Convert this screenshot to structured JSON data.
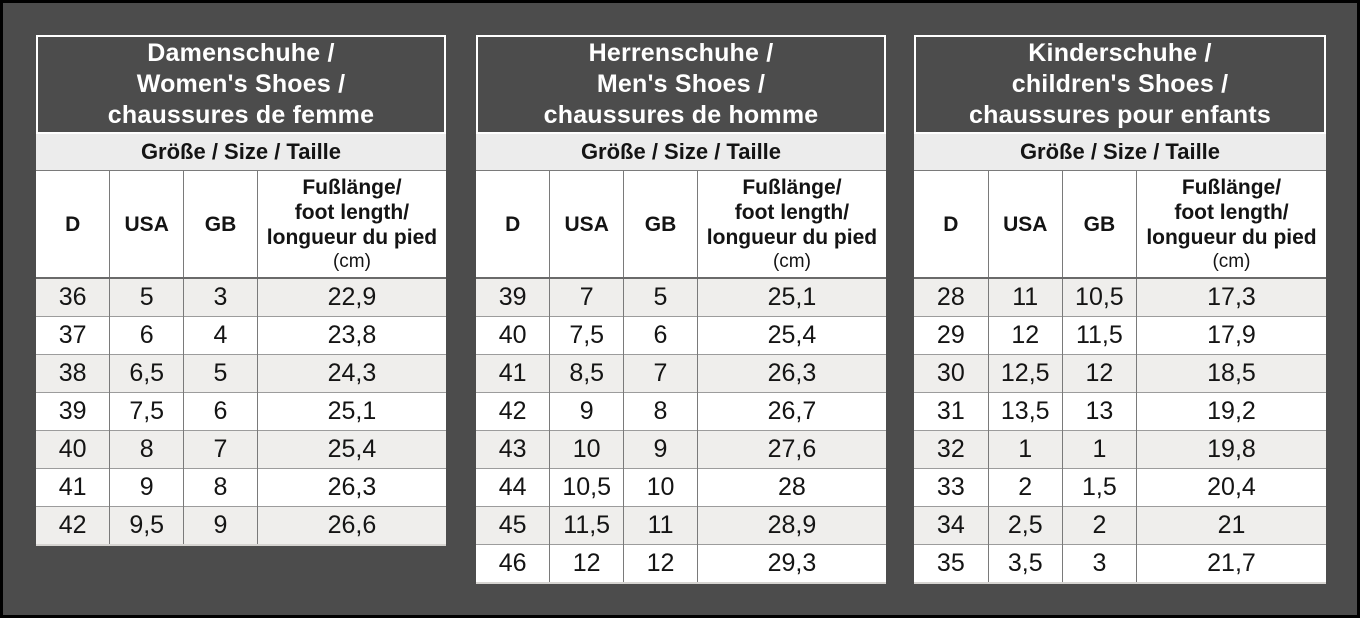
{
  "colors": {
    "page_background": "#4c4c4c",
    "page_border": "#000000",
    "header_background": "#4c4c4c",
    "header_text": "#ffffff",
    "header_border": "#ffffff",
    "subheader_background": "#ececec",
    "row_stripe": "#efeeec",
    "row_white": "#ffffff",
    "cell_border": "#7a7a7a",
    "text": "#141414"
  },
  "shared": {
    "size_header": "Größe / Size / Taille",
    "columns": [
      "D",
      "USA",
      "GB"
    ],
    "foot_length_lines": [
      "Fußlänge/",
      "foot length/",
      "longueur du pied"
    ],
    "foot_length_unit": "(cm)"
  },
  "tables": [
    {
      "id": "women",
      "title_lines": [
        "Damenschuhe /",
        "Women's Shoes /",
        "chaussures de femme"
      ],
      "rows": [
        [
          "36",
          "5",
          "3",
          "22,9"
        ],
        [
          "37",
          "6",
          "4",
          "23,8"
        ],
        [
          "38",
          "6,5",
          "5",
          "24,3"
        ],
        [
          "39",
          "7,5",
          "6",
          "25,1"
        ],
        [
          "40",
          "8",
          "7",
          "25,4"
        ],
        [
          "41",
          "9",
          "8",
          "26,3"
        ],
        [
          "42",
          "9,5",
          "9",
          "26,6"
        ]
      ]
    },
    {
      "id": "men",
      "title_lines": [
        "Herrenschuhe /",
        "Men's Shoes /",
        "chaussures de homme"
      ],
      "rows": [
        [
          "39",
          "7",
          "5",
          "25,1"
        ],
        [
          "40",
          "7,5",
          "6",
          "25,4"
        ],
        [
          "41",
          "8,5",
          "7",
          "26,3"
        ],
        [
          "42",
          "9",
          "8",
          "26,7"
        ],
        [
          "43",
          "10",
          "9",
          "27,6"
        ],
        [
          "44",
          "10,5",
          "10",
          "28"
        ],
        [
          "45",
          "11,5",
          "11",
          "28,9"
        ],
        [
          "46",
          "12",
          "12",
          "29,3"
        ]
      ]
    },
    {
      "id": "children",
      "title_lines": [
        "Kinderschuhe /",
        "children's Shoes /",
        "chaussures pour enfants"
      ],
      "rows": [
        [
          "28",
          "11",
          "10,5",
          "17,3"
        ],
        [
          "29",
          "12",
          "11,5",
          "17,9"
        ],
        [
          "30",
          "12,5",
          "12",
          "18,5"
        ],
        [
          "31",
          "13,5",
          "13",
          "19,2"
        ],
        [
          "32",
          "1",
          "1",
          "19,8"
        ],
        [
          "33",
          "2",
          "1,5",
          "20,4"
        ],
        [
          "34",
          "2,5",
          "2",
          "21"
        ],
        [
          "35",
          "3,5",
          "3",
          "21,7"
        ]
      ]
    }
  ]
}
